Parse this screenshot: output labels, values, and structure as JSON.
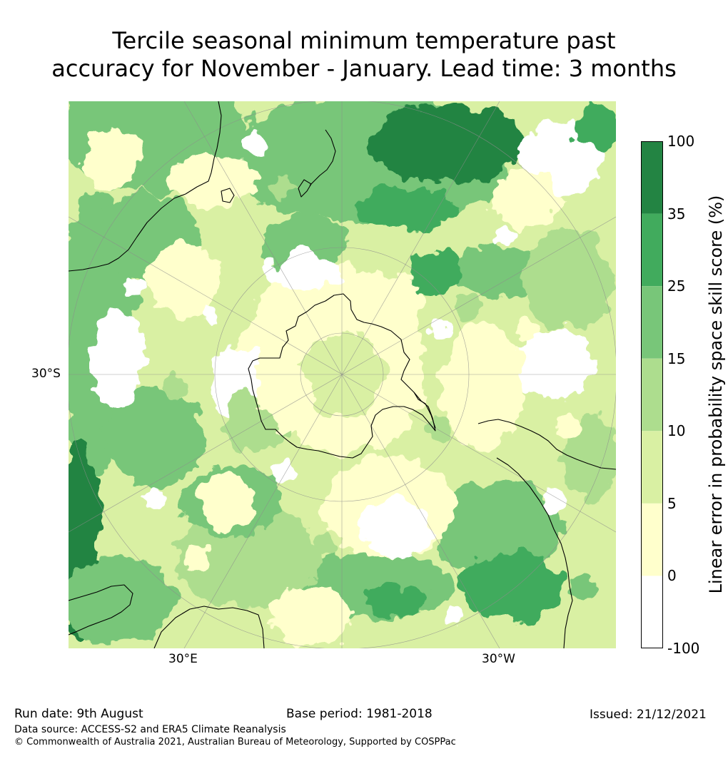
{
  "title_lines": [
    "Tercile seasonal minimum temperature past",
    "accuracy for November - January. Lead time: 3 months"
  ],
  "map": {
    "projection": "south-polar-stereographic",
    "lat_label": "30°S",
    "lon_labels": [
      "30°E",
      "30°W"
    ],
    "coastline_color": "#000000",
    "graticule_color": "#8c8c8c"
  },
  "colorbar": {
    "title": "Linear error in probability space skill score (%)",
    "tick_labels": [
      "100",
      "35",
      "25",
      "15",
      "10",
      "5",
      "0",
      "-100"
    ],
    "bins": [
      {
        "range": [
          35,
          100
        ],
        "color": "#238443"
      },
      {
        "range": [
          25,
          35
        ],
        "color": "#41ab5d"
      },
      {
        "range": [
          15,
          25
        ],
        "color": "#78c679"
      },
      {
        "range": [
          10,
          15
        ],
        "color": "#addd8e"
      },
      {
        "range": [
          5,
          10
        ],
        "color": "#d9f0a3"
      },
      {
        "range": [
          0,
          5
        ],
        "color": "#ffffcc"
      },
      {
        "range": [
          -100,
          0
        ],
        "color": "#ffffff"
      }
    ]
  },
  "footer": {
    "run_date": "Run date: 9th August",
    "base_period": "Base period: 1981-2018",
    "issued": "Issued: 21/12/2021",
    "data_source": "Data source: ACCESS-S2 and ERA5 Climate Reanalysis",
    "copyright": "© Commonwealth of Australia 2021, Australian Bureau of Meteorology, Supported by COSPPac"
  }
}
